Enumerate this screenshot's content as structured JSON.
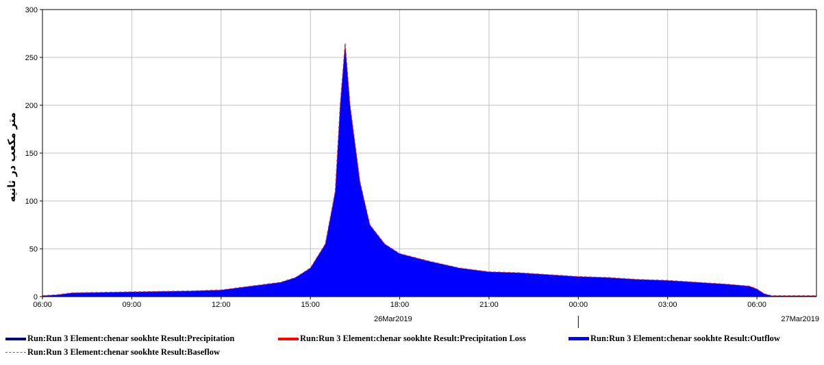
{
  "chart_data": {
    "type": "area",
    "ylabel": "متر مکعب در ثانیه",
    "ylim": [
      0,
      300
    ],
    "y_ticks": [
      "0",
      "50",
      "100",
      "150",
      "200",
      "250",
      "300"
    ],
    "x_ticks": [
      "06:00",
      "09:00",
      "12:00",
      "15:00",
      "18:00",
      "21:00",
      "00:00",
      "03:00",
      "06:00"
    ],
    "date_labels": [
      "26Mar2019",
      "27Mar2019"
    ],
    "grid": true,
    "legend_position": "bottom",
    "colors": {
      "outflow": "#0000ff",
      "precipitation": "#000080",
      "precipitation_loss": "#ff0000",
      "baseflow": "#cc3333",
      "grid": "#c0c0c0"
    },
    "series": [
      {
        "name": "Run:Run 3 Element:chenar sookhte Result:Outflow",
        "x": [
          "26Mar2019 06:00",
          "26Mar2019 06:30",
          "26Mar2019 07:00",
          "26Mar2019 08:00",
          "26Mar2019 09:00",
          "26Mar2019 10:00",
          "26Mar2019 11:00",
          "26Mar2019 12:00",
          "26Mar2019 13:00",
          "26Mar2019 14:00",
          "26Mar2019 14:30",
          "26Mar2019 15:00",
          "26Mar2019 15:30",
          "26Mar2019 15:50",
          "26Mar2019 16:00",
          "26Mar2019 16:10",
          "26Mar2019 16:20",
          "26Mar2019 16:40",
          "26Mar2019 17:00",
          "26Mar2019 17:30",
          "26Mar2019 18:00",
          "26Mar2019 19:00",
          "26Mar2019 20:00",
          "26Mar2019 21:00",
          "26Mar2019 22:00",
          "26Mar2019 23:00",
          "27Mar2019 00:00",
          "27Mar2019 01:00",
          "27Mar2019 02:00",
          "27Mar2019 03:00",
          "27Mar2019 04:00",
          "27Mar2019 05:00",
          "27Mar2019 05:45",
          "27Mar2019 06:00",
          "27Mar2019 06:15",
          "27Mar2019 06:30",
          "27Mar2019 07:00",
          "27Mar2019 08:00"
        ],
        "values": [
          1,
          2,
          4,
          4.5,
          5,
          5.5,
          6,
          7,
          11,
          15,
          20,
          30,
          55,
          110,
          200,
          265,
          200,
          120,
          75,
          55,
          45,
          37,
          30,
          26,
          25,
          23,
          21,
          20,
          18,
          17,
          15,
          13,
          11,
          8,
          3,
          1,
          1,
          1
        ]
      },
      {
        "name": "Run:Run 3 Element:chenar sookhte Result:Baseflow",
        "values": []
      },
      {
        "name": "Run:Run 3 Element:chenar sookhte Result:Precipitation",
        "values": []
      },
      {
        "name": "Run:Run 3 Element:chenar sookhte Result:Precipitation Loss",
        "values": []
      }
    ]
  }
}
